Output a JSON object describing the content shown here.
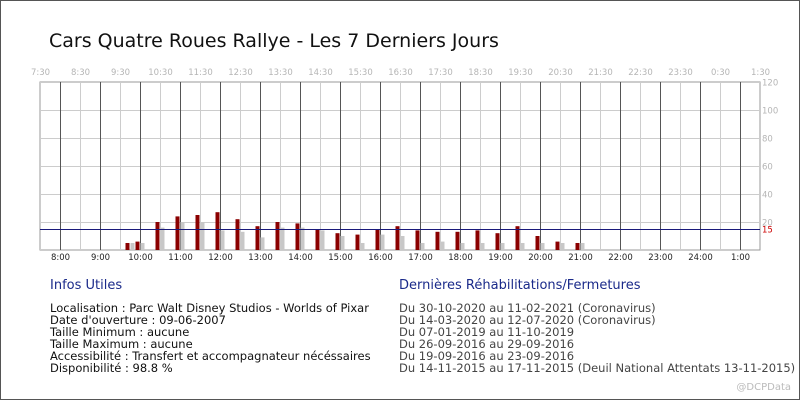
{
  "title": "Cars Quatre Roues Rallye - Les 7 Derniers Jours",
  "chart_data": {
    "type": "bar",
    "top_ticks": [
      "7:30",
      "8:30",
      "9:30",
      "10:30",
      "11:30",
      "12:30",
      "13:30",
      "14:30",
      "15:30",
      "16:30",
      "17:30",
      "18:30",
      "19:30",
      "20:30",
      "21:30",
      "22:30",
      "23:30",
      "0:30",
      "1:30"
    ],
    "bottom_ticks": [
      "8:00",
      "9:00",
      "10:00",
      "11:00",
      "12:00",
      "13:00",
      "14:00",
      "15:00",
      "16:00",
      "17:00",
      "18:00",
      "19:00",
      "20:00",
      "21:00",
      "22:00",
      "23:00",
      "24:00",
      "1:00"
    ],
    "ylim": [
      0,
      120
    ],
    "yticks": [
      20,
      40,
      60,
      80,
      100,
      120
    ],
    "reference_line": {
      "value": 15,
      "label": "15",
      "color": "#1a1a7a"
    },
    "x_start_hour": 7.5,
    "x_end_hour": 25.5,
    "series": [
      {
        "color": "#8b0000",
        "x": [
          9.75,
          10.0,
          10.5,
          11.0,
          11.5,
          12.0,
          12.5,
          13.0,
          13.5,
          14.0,
          14.5,
          15.0,
          15.5,
          16.0,
          16.5,
          17.0,
          17.5,
          18.0,
          18.5,
          19.0,
          19.5,
          20.0,
          20.5,
          21.0
        ],
        "values": [
          5,
          6,
          20,
          24,
          25,
          27,
          22,
          17,
          20,
          19,
          15,
          12,
          11,
          15,
          17,
          14,
          13,
          13,
          14,
          12,
          17,
          10,
          6,
          5
        ]
      },
      {
        "color": "#c8c8c8",
        "x": [
          9.75,
          10.0,
          10.5,
          11.0,
          11.5,
          12.0,
          12.5,
          13.0,
          13.5,
          14.0,
          14.5,
          15.0,
          15.5,
          16.0,
          16.5,
          17.0,
          17.5,
          18.0,
          18.5,
          19.0,
          19.5,
          20.0,
          20.5,
          21.0
        ],
        "values": [
          5,
          5,
          16,
          20,
          20,
          14,
          13,
          9,
          16,
          16,
          14,
          10,
          5,
          11,
          10,
          5,
          6,
          5,
          5,
          5,
          5,
          5,
          5,
          5
        ]
      }
    ],
    "colors": {
      "grid_major": "#555555",
      "grid_minor": "#cccccc",
      "frame": "#999999"
    }
  },
  "infos": {
    "heading": "Infos Utiles",
    "lines": [
      "Localisation : Parc Walt Disney Studios - Worlds of Pixar",
      "Date d'ouverture : 09-06-2007",
      "Taille Minimum : aucune",
      "Taille Maximum : aucune",
      "Accessibilité : Transfert et accompagnateur nécéssaires",
      "Disponibilité : 98.8 %"
    ]
  },
  "rehab": {
    "heading": "Dernières Réhabilitations/Fermetures",
    "lines": [
      "Du 30-10-2020 au 11-02-2021 (Coronavirus)",
      "Du 14-03-2020 au 12-07-2020 (Coronavirus)",
      "Du 07-01-2019 au 11-10-2019",
      "Du 26-09-2016 au 29-09-2016",
      "Du 19-09-2016 au 23-09-2016",
      "Du 14-11-2015 au 17-11-2015 (Deuil National Attentats 13-11-2015)"
    ]
  },
  "watermark": "@DCPData"
}
